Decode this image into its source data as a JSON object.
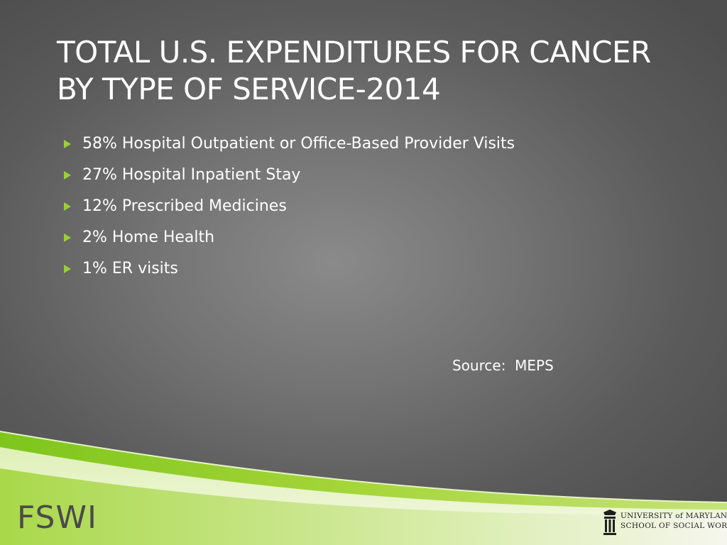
{
  "slide": {
    "title_lines": [
      "TOTAL U.S. EXPENDITURES FOR CANCER",
      "BY TYPE OF SERVICE-2014"
    ],
    "bullets": [
      "58% Hospital Outpatient or Office-Based Provider Visits",
      "27% Hospital Inpatient Stay",
      "12% Prescribed Medicines",
      "2% Home Health",
      "1% ER visits"
    ],
    "source": "Source:  MEPS"
  },
  "footer": {
    "brand": "FSWI",
    "logo_line1": "UNIVERSITY of MARYLAND",
    "logo_line2": "SCHOOL OF SOCIAL WORK"
  },
  "colors": {
    "accent_green": "#9bd12e",
    "background": "#6b6b6b",
    "title_text": "#ffffff"
  }
}
